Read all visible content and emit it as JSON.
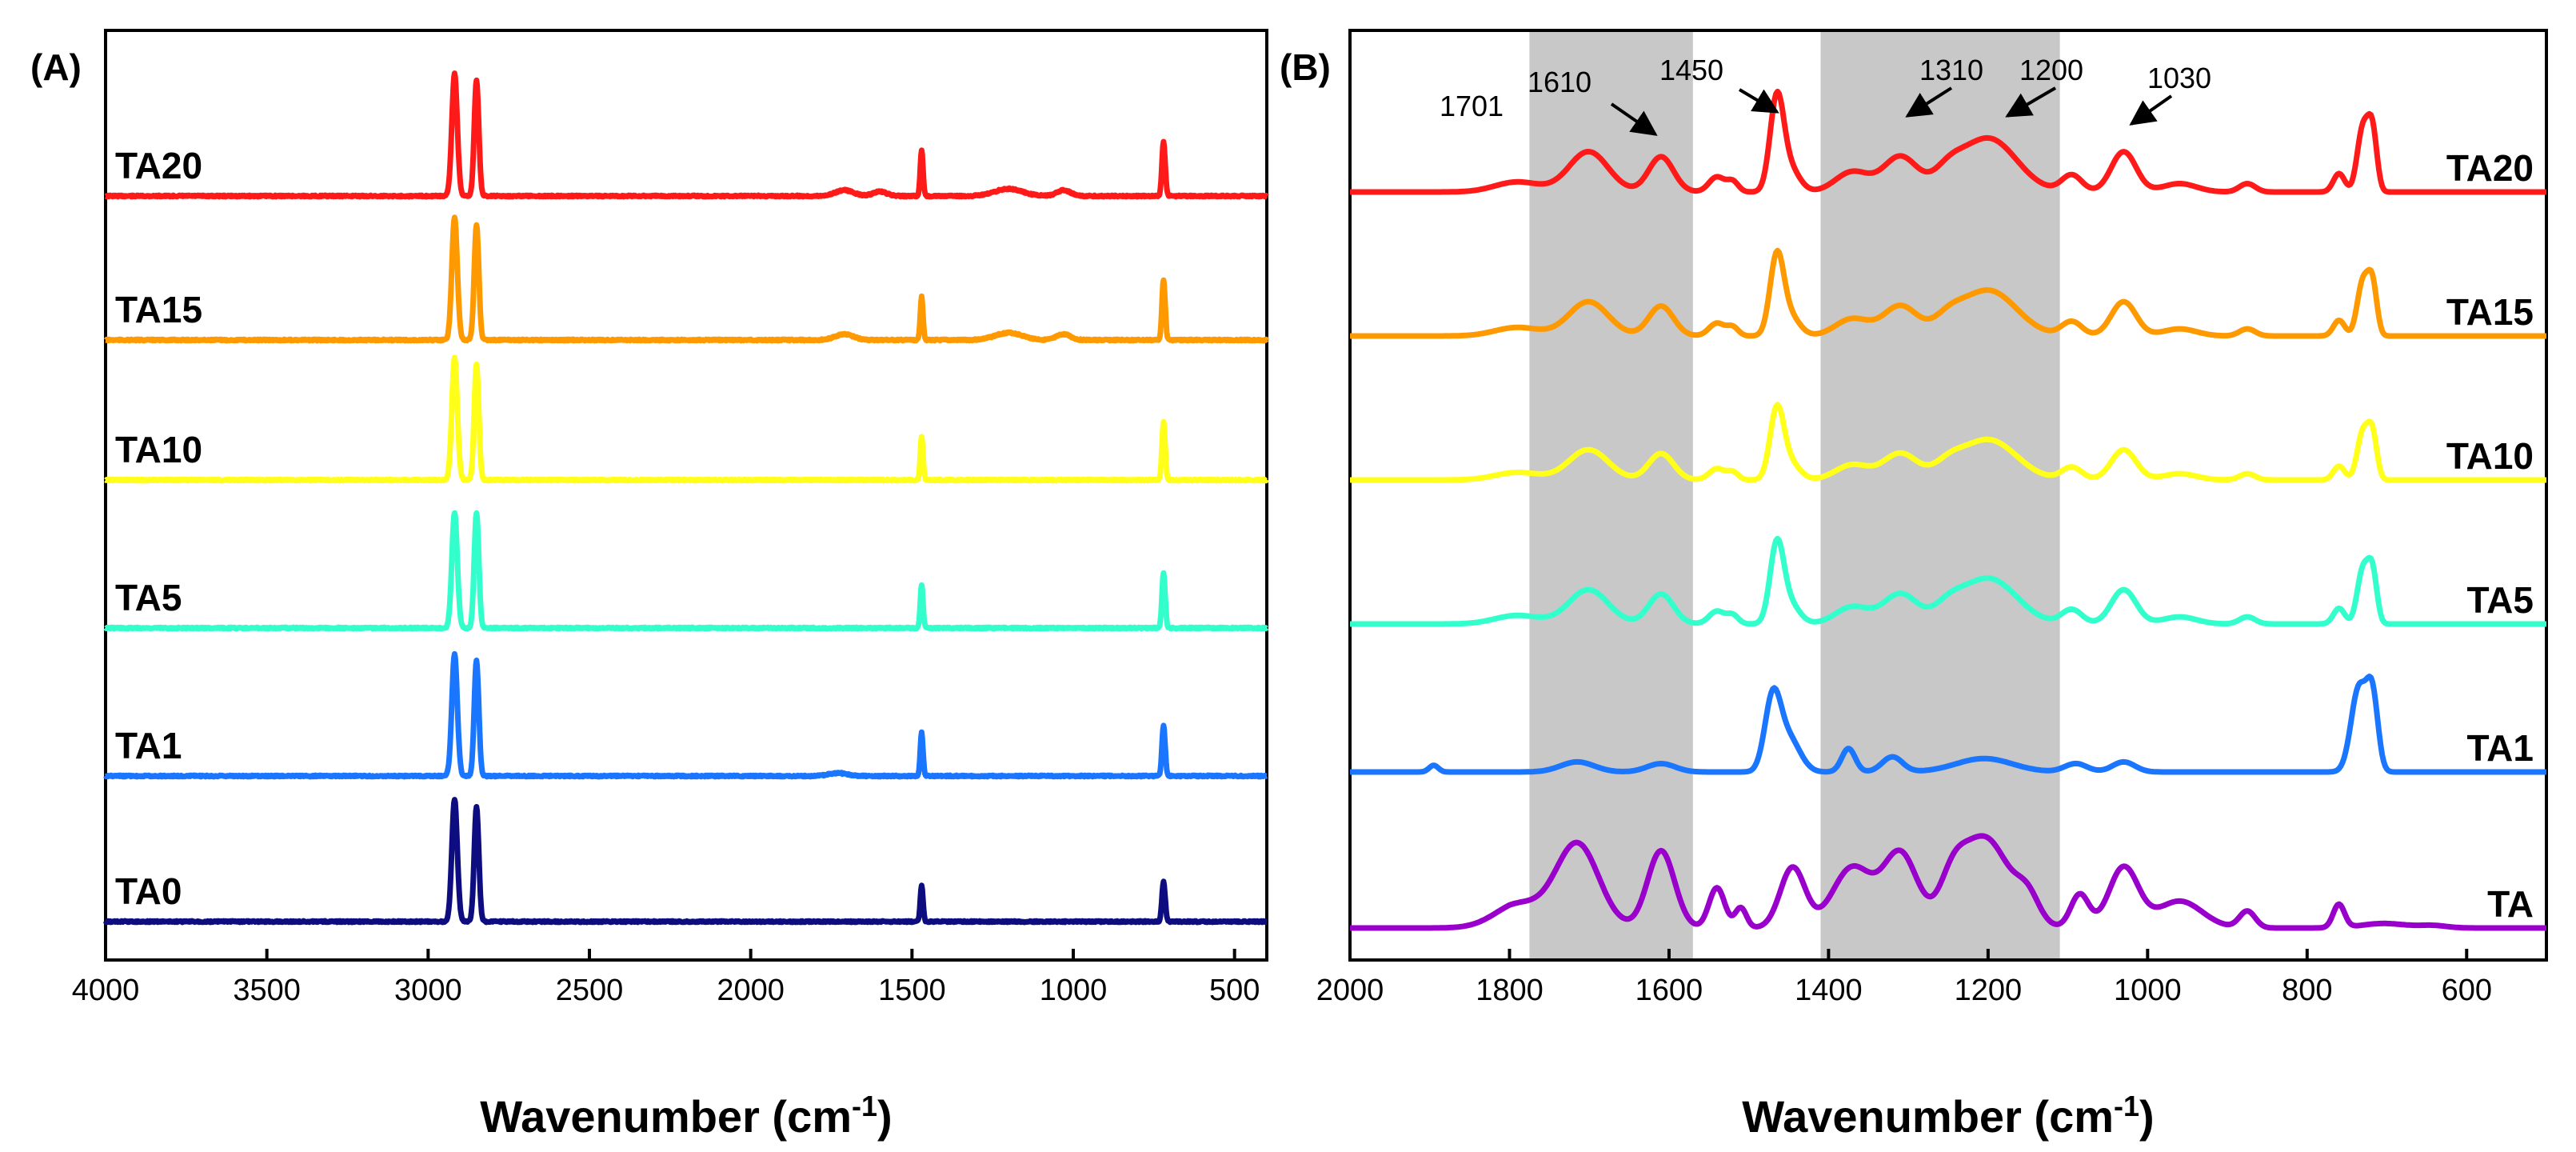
{
  "chart_data": [
    {
      "panel": "(A)",
      "type": "line",
      "xlabel": "Wavenumber (cm",
      "xlabel_sup": "-1",
      "xlabel_close": ")",
      "xlim": [
        4000,
        400
      ],
      "xticks": [
        "4000",
        "3500",
        "3000",
        "2500",
        "2000",
        "1500",
        "1000",
        "500"
      ],
      "ylabel": "",
      "series": [
        {
          "name": "TA20",
          "color": "#ff1a1a",
          "baseline": 5,
          "peaks": [
            [
              2918,
              8.5,
              12
            ],
            [
              2850,
              8.0,
              10
            ],
            [
              1470,
              3.2,
              6
            ],
            [
              720,
              3.8,
              7
            ],
            [
              1710,
              0.4,
              40
            ],
            [
              1200,
              0.5,
              60
            ],
            [
              1030,
              0.4,
              30
            ],
            [
              1600,
              0.3,
              30
            ]
          ]
        },
        {
          "name": "TA15",
          "color": "#ff9900",
          "baseline": 4,
          "peaks": [
            [
              2918,
              8.5,
              12
            ],
            [
              2850,
              8.0,
              10
            ],
            [
              1470,
              3.0,
              6
            ],
            [
              720,
              4.2,
              7
            ],
            [
              1710,
              0.4,
              40
            ],
            [
              1200,
              0.5,
              60
            ],
            [
              1030,
              0.4,
              30
            ]
          ]
        },
        {
          "name": "TA10",
          "color": "#ffff1a",
          "baseline": 3,
          "peaks": [
            [
              2918,
              8.5,
              12
            ],
            [
              2850,
              8.0,
              10
            ],
            [
              1470,
              3.0,
              6
            ],
            [
              720,
              4.0,
              7
            ]
          ]
        },
        {
          "name": "TA5",
          "color": "#33ffcc",
          "baseline": 2,
          "peaks": [
            [
              2918,
              8.0,
              12
            ],
            [
              2850,
              8.0,
              10
            ],
            [
              1470,
              3.0,
              6
            ],
            [
              720,
              3.8,
              7
            ]
          ]
        },
        {
          "name": "TA1",
          "color": "#1a75ff",
          "baseline": 1,
          "peaks": [
            [
              2918,
              8.5,
              12
            ],
            [
              2850,
              8.0,
              10
            ],
            [
              1470,
              3.0,
              6
            ],
            [
              720,
              3.5,
              7
            ],
            [
              1730,
              0.2,
              40
            ]
          ]
        },
        {
          "name": "TA0",
          "color": "#0d0d80",
          "baseline": 0,
          "peaks": [
            [
              2918,
              8.5,
              12
            ],
            [
              2850,
              8.0,
              10
            ],
            [
              1470,
              2.5,
              6
            ],
            [
              720,
              2.8,
              7
            ]
          ]
        }
      ]
    },
    {
      "panel": "(B)",
      "type": "line",
      "xlabel": "Wavenumber (cm",
      "xlabel_sup": "-1",
      "xlabel_close": ")",
      "xlim": [
        2000,
        500
      ],
      "xticks": [
        "2000",
        "1800",
        "1600",
        "1400",
        "1200",
        "1000",
        "800",
        "600"
      ],
      "shaded_regions": [
        [
          1775,
          1570
        ],
        [
          1410,
          1110
        ]
      ],
      "annotations": [
        {
          "label": "1701",
          "x": 1701
        },
        {
          "label": "1610",
          "x": 1610
        },
        {
          "label": "1450",
          "x": 1450
        },
        {
          "label": "1310",
          "x": 1310
        },
        {
          "label": "1200",
          "x": 1200
        },
        {
          "label": "1030",
          "x": 1030
        }
      ],
      "series": [
        {
          "name": "TA20",
          "color": "#ff1a1a",
          "baseline": 5
        },
        {
          "name": "TA15",
          "color": "#ff9900",
          "baseline": 4
        },
        {
          "name": "TA10",
          "color": "#ffff1a",
          "baseline": 3
        },
        {
          "name": "TA5",
          "color": "#33ffcc",
          "baseline": 2
        },
        {
          "name": "TA1",
          "color": "#1a75ff",
          "baseline": 1
        },
        {
          "name": "TA",
          "color": "#9900cc",
          "baseline": 0
        }
      ]
    }
  ]
}
